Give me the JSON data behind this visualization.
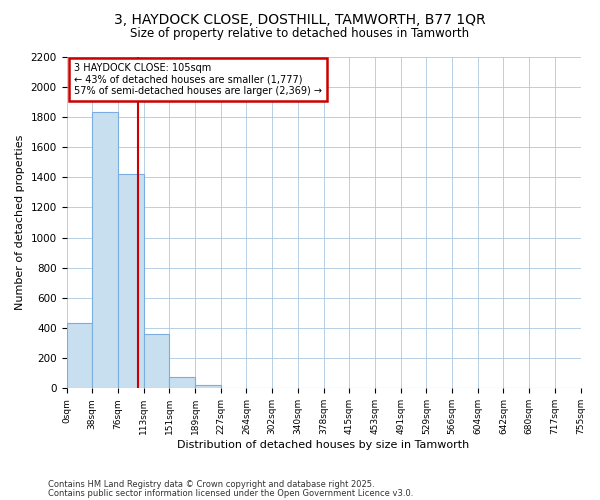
{
  "title_line1": "3, HAYDOCK CLOSE, DOSTHILL, TAMWORTH, B77 1QR",
  "title_line2": "Size of property relative to detached houses in Tamworth",
  "xlabel": "Distribution of detached houses by size in Tamworth",
  "ylabel": "Number of detached properties",
  "bin_labels": [
    "0sqm",
    "38sqm",
    "76sqm",
    "113sqm",
    "151sqm",
    "189sqm",
    "227sqm",
    "264sqm",
    "302sqm",
    "340sqm",
    "378sqm",
    "415sqm",
    "453sqm",
    "491sqm",
    "529sqm",
    "566sqm",
    "604sqm",
    "642sqm",
    "680sqm",
    "717sqm",
    "755sqm"
  ],
  "bar_values": [
    430,
    1830,
    1420,
    360,
    75,
    25,
    0,
    0,
    0,
    0,
    0,
    0,
    0,
    0,
    0,
    0,
    0,
    0,
    0,
    0
  ],
  "bar_color": "#c8dff0",
  "bar_edge_color": "#7aade0",
  "annotation_line1": "3 HAYDOCK CLOSE: 105sqm",
  "annotation_line2": "← 43% of detached houses are smaller (1,777)",
  "annotation_line3": "57% of semi-detached houses are larger (2,369) →",
  "annotation_box_color": "#ffffff",
  "annotation_box_edge": "#cc0000",
  "vline_color": "#cc0000",
  "ylim": [
    0,
    2200
  ],
  "yticks": [
    0,
    200,
    400,
    600,
    800,
    1000,
    1200,
    1400,
    1600,
    1800,
    2000,
    2200
  ],
  "grid_color": "#adc8e0",
  "background_color": "#ffffff",
  "plot_bg_color": "#ffffff",
  "footer_line1": "Contains HM Land Registry data © Crown copyright and database right 2025.",
  "footer_line2": "Contains public sector information licensed under the Open Government Licence v3.0.",
  "vline_bin_index": 3
}
